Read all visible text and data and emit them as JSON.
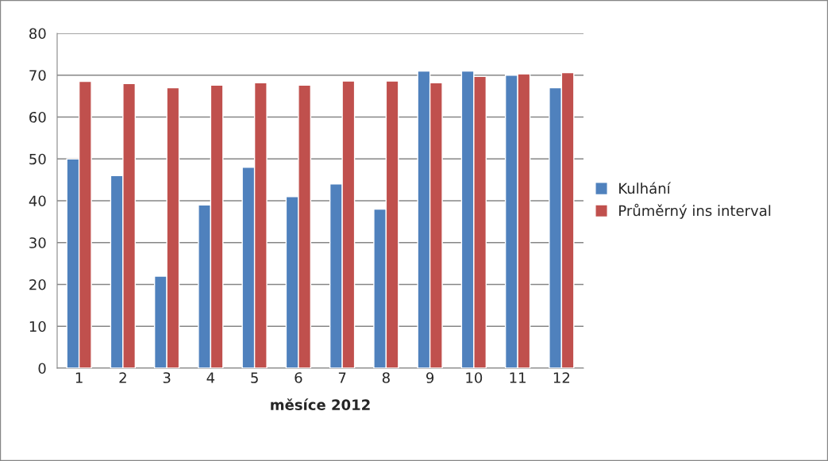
{
  "chart_data": {
    "type": "bar",
    "xlabel": "měsíce 2012",
    "categories": [
      "1",
      "2",
      "3",
      "4",
      "5",
      "6",
      "7",
      "8",
      "9",
      "10",
      "11",
      "12"
    ],
    "series": [
      {
        "name": "Kulhání",
        "color": "#4f81bd",
        "values": [
          50,
          46,
          22,
          39,
          48,
          41,
          44,
          38,
          71,
          71,
          70,
          67
        ]
      },
      {
        "name": "Průměrný ins interval",
        "color": "#c0504d",
        "values": [
          68.5,
          68.0,
          67.0,
          67.6,
          68.2,
          67.6,
          68.6,
          68.6,
          68.2,
          69.7,
          70.3,
          70.6
        ]
      }
    ],
    "ylim": [
      0,
      80
    ],
    "yticks": [
      0,
      10,
      20,
      30,
      40,
      50,
      60,
      70,
      80
    ],
    "grid": "y",
    "legend": "right"
  }
}
